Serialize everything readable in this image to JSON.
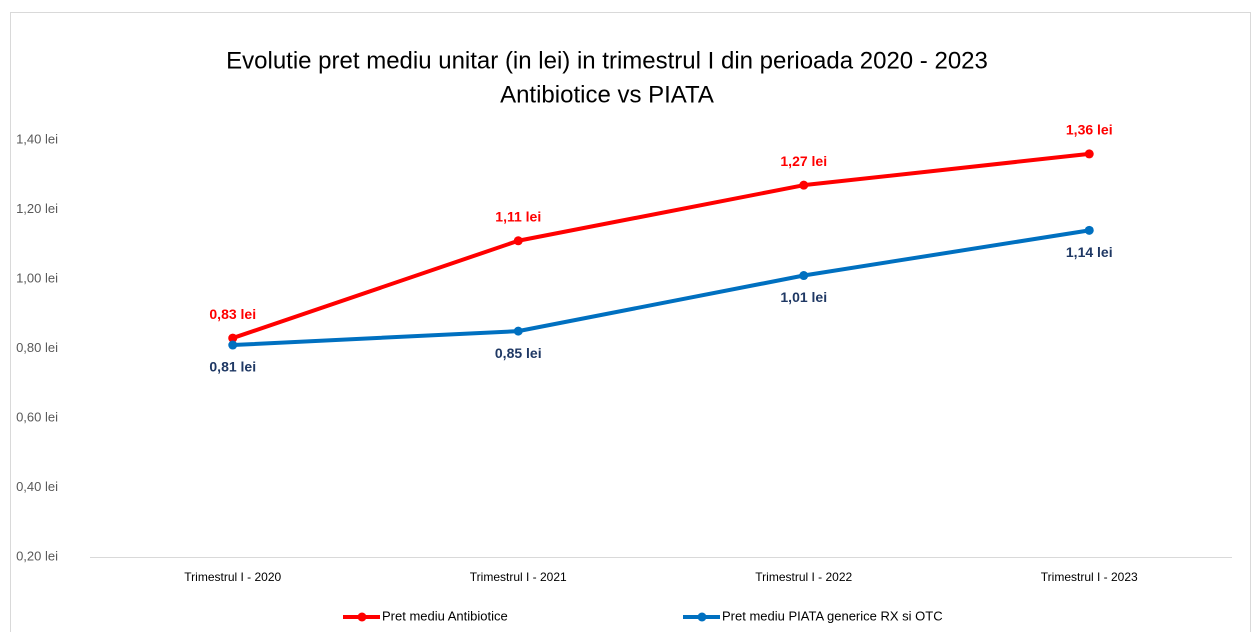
{
  "chart_data": {
    "type": "line",
    "title": "Evolutie pret mediu unitar (in lei) in trimestrul I din perioada 2020 - 2023",
    "subtitle": "Antibiotice vs PIATA",
    "categories": [
      "Trimestrul I - 2020",
      "Trimestrul I - 2021",
      "Trimestrul I - 2022",
      "Trimestrul I - 2023"
    ],
    "series": [
      {
        "name": "Pret mediu Antibiotice",
        "color": "#ff0000",
        "label_color": "#ff0000",
        "values": [
          0.83,
          1.11,
          1.27,
          1.36
        ],
        "value_labels": [
          "0,83 lei",
          "1,11 lei",
          "1,27 lei",
          "1,36 lei"
        ]
      },
      {
        "name": "Pret mediu PIATA generice RX si OTC",
        "color": "#0070c0",
        "label_color": "#1f3864",
        "values": [
          0.81,
          0.85,
          1.01,
          1.14
        ],
        "value_labels": [
          "0,81 lei",
          "0,85 lei",
          "1,01 lei",
          "1,14 lei"
        ]
      }
    ],
    "ylim": [
      0.2,
      1.4
    ],
    "yticks": [
      {
        "value": 0.2,
        "label": "0,20 lei"
      },
      {
        "value": 0.4,
        "label": "0,40 lei"
      },
      {
        "value": 0.6,
        "label": "0,60 lei"
      },
      {
        "value": 0.8,
        "label": "0,80 lei"
      },
      {
        "value": 1.0,
        "label": "1,00 lei"
      },
      {
        "value": 1.2,
        "label": "1,20 lei"
      },
      {
        "value": 1.4,
        "label": "1,40 lei"
      }
    ],
    "grid": false,
    "legend": "bottom"
  }
}
